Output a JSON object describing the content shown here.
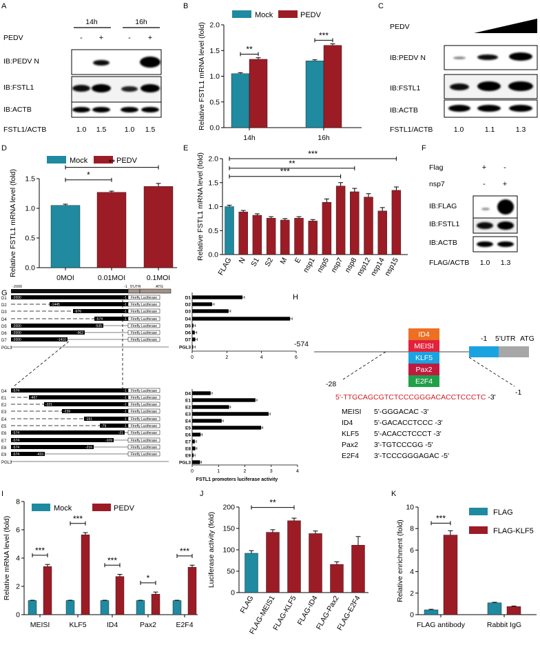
{
  "colors": {
    "mock": "#1f8aa0",
    "pedv": "#9c1c26",
    "orange": "#ed7022",
    "red": "#e3213a",
    "blue": "#1ba3e1",
    "darkred": "#c01a3f",
    "green": "#21a04a",
    "gray": "#a7a7a7",
    "seqRed": "#d01a20"
  },
  "panelA": {
    "label": "A",
    "times": [
      "14h",
      "16h"
    ],
    "pedv_label": "PEDV",
    "signs": [
      "-",
      "+",
      "-",
      "+"
    ],
    "blots": [
      "IB:PEDV N",
      "IB:FSTL1",
      "IB:ACTB"
    ],
    "ratio_label": "FSTL1/ACTB",
    "ratios": [
      "1.0",
      "1.5",
      "1.0",
      "1.5"
    ]
  },
  "panelB": {
    "label": "B",
    "legend": [
      "Mock",
      "PEDV"
    ],
    "ylabel": "Relative FSTL1 mRNA level (fold)",
    "ticks": [
      "0.0",
      "0.5",
      "1.0",
      "1.5",
      "2.0"
    ],
    "sig": [
      "**",
      "***"
    ]
  },
  "panelC": {
    "label": "C",
    "pedv_label": "PEDV",
    "blots": [
      "IB:PEDV N",
      "IB:FSTL1",
      "IB:ACTB"
    ],
    "ratio_label": "FSTL1/ACTB",
    "ratios": [
      "1.0",
      "1.1",
      "1.3"
    ]
  },
  "panelD": {
    "label": "D",
    "legend": [
      "Mock",
      "PEDV"
    ],
    "ylabel": "Relative FSTL1 mRNA level (fold)",
    "ticks": [
      "0.0",
      "0.5",
      "1.0",
      "1.5"
    ],
    "sig": [
      "*",
      "**"
    ]
  },
  "panelE": {
    "label": "E",
    "ylabel": "Relative FSTL1 mRNA level (fold)",
    "ticks": [
      "0.0",
      "0.5",
      "1.0",
      "1.5",
      "2.0"
    ],
    "sig": [
      "***",
      "**",
      "***"
    ]
  },
  "panelF": {
    "label": "F",
    "rows": [
      "Flag",
      "nsp7"
    ],
    "signs": [
      "+",
      "-",
      "-",
      "+"
    ],
    "blots": [
      "IB:FLAG",
      "IB:FSTL1",
      "IB:ACTB"
    ],
    "ratio_label": "FLAG/ACTB",
    "ratios": [
      "1.0",
      "1.3"
    ]
  },
  "panelG": {
    "label": "G",
    "header": {
      "start": "-2000",
      "end": "-1",
      "utr": "5'UTR",
      "atg": "ATG"
    },
    "luc": "Firefly Luciferase",
    "top": [
      {
        "name": "D1",
        "left": "-2000",
        "right": "-1",
        "dash": false
      },
      {
        "name": "D2",
        "left": "-1445",
        "right": "-1",
        "dash": true
      },
      {
        "name": "D3",
        "left": "-976",
        "right": "-1",
        "dash": true
      },
      {
        "name": "D4",
        "left": "-574",
        "right": "-1",
        "dash": true
      },
      {
        "name": "D5",
        "left": "-2000",
        "right": "-535",
        "dash": false
      },
      {
        "name": "D6",
        "left": "-2000",
        "right": "-962",
        "dash": false
      },
      {
        "name": "D7",
        "left": "-2000",
        "right": "-1410",
        "dash": false
      },
      {
        "name": "PGL3",
        "left": "",
        "right": "",
        "dash": false
      }
    ],
    "bottom": [
      {
        "name": "D4",
        "left": "-574",
        "right": "-1",
        "dash": false
      },
      {
        "name": "E1",
        "left": "-467",
        "right": "-1",
        "dash": true
      },
      {
        "name": "E2",
        "left": "-321",
        "right": "-1",
        "dash": true
      },
      {
        "name": "E3",
        "left": "-239",
        "right": "-1",
        "dash": true
      },
      {
        "name": "E4",
        "left": "-151",
        "right": "-1",
        "dash": true
      },
      {
        "name": "E5",
        "left": "-79",
        "right": "-1",
        "dash": true
      },
      {
        "name": "E6",
        "left": "-574",
        "right": "-21",
        "dash": false
      },
      {
        "name": "E7",
        "left": "-574",
        "right": "-109",
        "dash": false
      },
      {
        "name": "E8",
        "left": "-574",
        "right": "-216",
        "dash": false
      },
      {
        "name": "E9",
        "left": "-574",
        "right": "-433",
        "dash": false
      },
      {
        "name": "PGL3",
        "left": "",
        "right": "",
        "dash": false
      }
    ],
    "xlabel": "FSTL1 promoters luciferase activity",
    "topTicks": [
      "0",
      "2",
      "4",
      "6"
    ],
    "bottomTicks": [
      "0",
      "1",
      "2",
      "3",
      "4"
    ]
  },
  "panelH": {
    "label": "H",
    "pos574": "-574",
    "pos1": "-1",
    "utr": "5'UTR",
    "atg": "ATG",
    "pos28": "-28",
    "posm1": "-1",
    "tfs": [
      "ID4",
      "MEISI",
      "KLF5",
      "Pax2",
      "E2F4"
    ],
    "seq_pre": "5'-",
    "seq": "TTGCAGCGTCTCCCGGGACACCTCCCTC",
    "seq_post": " -3'",
    "motifs": [
      {
        "name": "MEISI",
        "seq": "5'-GGGACAC -3'"
      },
      {
        "name": "ID4",
        "seq": "5'-GACACCTCCC -3'"
      },
      {
        "name": "KLF5",
        "seq": "5'-ACACCTCCCT -3'"
      },
      {
        "name": "Pax2",
        "seq": "3'-TGTCCCGG -5'"
      },
      {
        "name": "E2F4",
        "seq": "3'-TCCCGGGAGAC -5'"
      }
    ]
  },
  "panelI": {
    "label": "I",
    "legend": [
      "Mock",
      "PEDV"
    ],
    "ylabel": "Relative mRNA level (fold)",
    "ticks": [
      "0",
      "2",
      "4",
      "6",
      "8"
    ],
    "sig": [
      "***",
      "***",
      "***",
      "*",
      "***"
    ]
  },
  "panelJ": {
    "label": "J",
    "ylabel": "Luciferase activity (fold)",
    "ticks": [
      "0",
      "50",
      "100",
      "150",
      "200"
    ],
    "sig": [
      "**"
    ]
  },
  "panelK": {
    "label": "K",
    "legend": [
      "FLAG",
      "FLAG-KLF5"
    ],
    "ylabel": "Relative enrichment (fold)",
    "ticks": [
      "0",
      "2",
      "4",
      "6",
      "8",
      "10"
    ],
    "sig": [
      "***"
    ]
  },
  "chart_data": [
    {
      "id": "B",
      "type": "bar",
      "title": "",
      "xlabel": "",
      "ylabel": "Relative FSTL1 mRNA level (fold)",
      "ylim": [
        0,
        2.0
      ],
      "categories": [
        "14h",
        "16h"
      ],
      "series": [
        {
          "name": "Mock",
          "values": [
            1.05,
            1.3
          ]
        },
        {
          "name": "PEDV",
          "values": [
            1.33,
            1.6
          ]
        }
      ]
    },
    {
      "id": "D",
      "type": "bar",
      "title": "",
      "xlabel": "",
      "ylabel": "Relative FSTL1 mRNA level (fold)",
      "ylim": [
        0,
        1.5
      ],
      "categories": [
        "0MOI",
        "0.01MOI",
        "0.1MOI"
      ],
      "values": [
        1.05,
        1.27,
        1.37
      ]
    },
    {
      "id": "E",
      "type": "bar",
      "title": "",
      "xlabel": "",
      "ylabel": "Relative FSTL1 mRNA level (fold)",
      "ylim": [
        0,
        2.0
      ],
      "categories": [
        "FLAG",
        "N",
        "S1",
        "S2",
        "M",
        "E",
        "nsp1",
        "nsp5",
        "nsp7",
        "nsp8",
        "nsp12",
        "nsp14",
        "nsp15"
      ],
      "values": [
        1.0,
        0.89,
        0.82,
        0.76,
        0.72,
        0.76,
        0.7,
        1.09,
        1.43,
        1.31,
        1.2,
        0.91,
        1.34
      ]
    },
    {
      "id": "G-top",
      "type": "bar",
      "title": "",
      "xlabel": "FSTL1 promoters luciferase activity",
      "ylabel": "",
      "xlim": [
        0,
        6
      ],
      "categories": [
        "D1",
        "D2",
        "D3",
        "D4",
        "D5",
        "D6",
        "D7",
        "PGL3"
      ],
      "values": [
        2.9,
        1.15,
        2.1,
        5.65,
        0.07,
        0.15,
        0.18,
        0.05
      ]
    },
    {
      "id": "G-bottom",
      "type": "bar",
      "title": "",
      "xlabel": "FSTL1 promoters luciferase activity",
      "ylabel": "",
      "xlim": [
        0,
        4
      ],
      "categories": [
        "D4",
        "E1",
        "E2",
        "E3",
        "E4",
        "E5",
        "E6",
        "E7",
        "E8",
        "E9",
        "PGL3"
      ],
      "values": [
        0.7,
        2.4,
        1.4,
        2.9,
        1.12,
        2.62,
        0.32,
        0.1,
        0.12,
        0.05,
        0.3
      ]
    },
    {
      "id": "I",
      "type": "bar",
      "title": "",
      "xlabel": "",
      "ylabel": "Relative mRNA level (fold)",
      "ylim": [
        0,
        8
      ],
      "categories": [
        "MEISI",
        "KLF5",
        "ID4",
        "Pax2",
        "E2F4"
      ],
      "series": [
        {
          "name": "Mock",
          "values": [
            1.0,
            1.0,
            1.0,
            1.0,
            1.0
          ]
        },
        {
          "name": "PEDV",
          "values": [
            3.4,
            5.65,
            2.7,
            1.45,
            3.35
          ]
        }
      ]
    },
    {
      "id": "J",
      "type": "bar",
      "title": "",
      "xlabel": "",
      "ylabel": "Luciferase activity (fold)",
      "ylim": [
        0,
        200
      ],
      "categories": [
        "FLAG",
        "FLAG-MEIS1",
        "FLAG-KLF5",
        "FLAG-ID4",
        "FLAG-Pax2",
        "FLAG-E2F4"
      ],
      "values": [
        92,
        141,
        168,
        138,
        66,
        111
      ]
    },
    {
      "id": "K",
      "type": "bar",
      "title": "",
      "xlabel": "",
      "ylabel": "Relative enrichment (fold)",
      "ylim": [
        0,
        10
      ],
      "categories": [
        "FLAG antibody",
        "Rabbit IgG"
      ],
      "series": [
        {
          "name": "FLAG",
          "values": [
            0.45,
            1.1
          ]
        },
        {
          "name": "FLAG-KLF5",
          "values": [
            7.4,
            0.75
          ]
        }
      ]
    }
  ]
}
